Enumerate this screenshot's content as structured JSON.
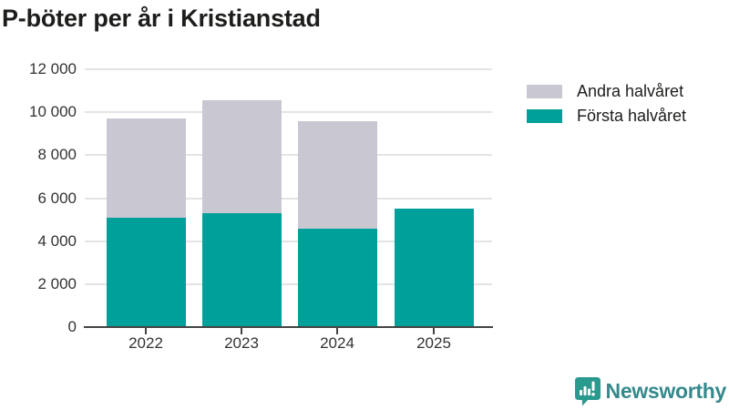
{
  "title": "P-böter per år i Kristianstad",
  "colors": {
    "first_half": "#00a09a",
    "second_half": "#c9c8d2",
    "axis": "#444444",
    "grid": "#e4e4e4",
    "tick_text": "#333333",
    "title_text": "#1d1d1b",
    "brand": "#35898c"
  },
  "legend": {
    "items": [
      {
        "label": "Andra halvåret",
        "color_key": "second_half"
      },
      {
        "label": "Första halvåret",
        "color_key": "first_half"
      }
    ]
  },
  "chart_data": {
    "type": "bar",
    "stacked": true,
    "title": "P-böter per år i Kristianstad",
    "categories": [
      "2022",
      "2023",
      "2024",
      "2025"
    ],
    "series": [
      {
        "name": "Första halvåret",
        "color_key": "first_half",
        "values": [
          5100,
          5300,
          4600,
          5500
        ]
      },
      {
        "name": "Andra halvåret",
        "color_key": "second_half",
        "values": [
          4600,
          5250,
          5000,
          0
        ]
      }
    ],
    "totals": [
      9700,
      10550,
      9600,
      5500
    ],
    "xlabel": "",
    "ylabel": "",
    "ylim": [
      0,
      12000
    ],
    "ytick_step": 2000,
    "yticks": [
      0,
      2000,
      4000,
      6000,
      8000,
      10000,
      12000
    ],
    "ytick_labels": [
      "0",
      "2 000",
      "4 000",
      "6 000",
      "8 000",
      "10 000",
      "12 000"
    ],
    "grid": true,
    "legend_position": "right"
  },
  "branding": {
    "logo_text": "Newsworthy",
    "logo_icon": "bar-chart-speech-bubble-icon"
  }
}
